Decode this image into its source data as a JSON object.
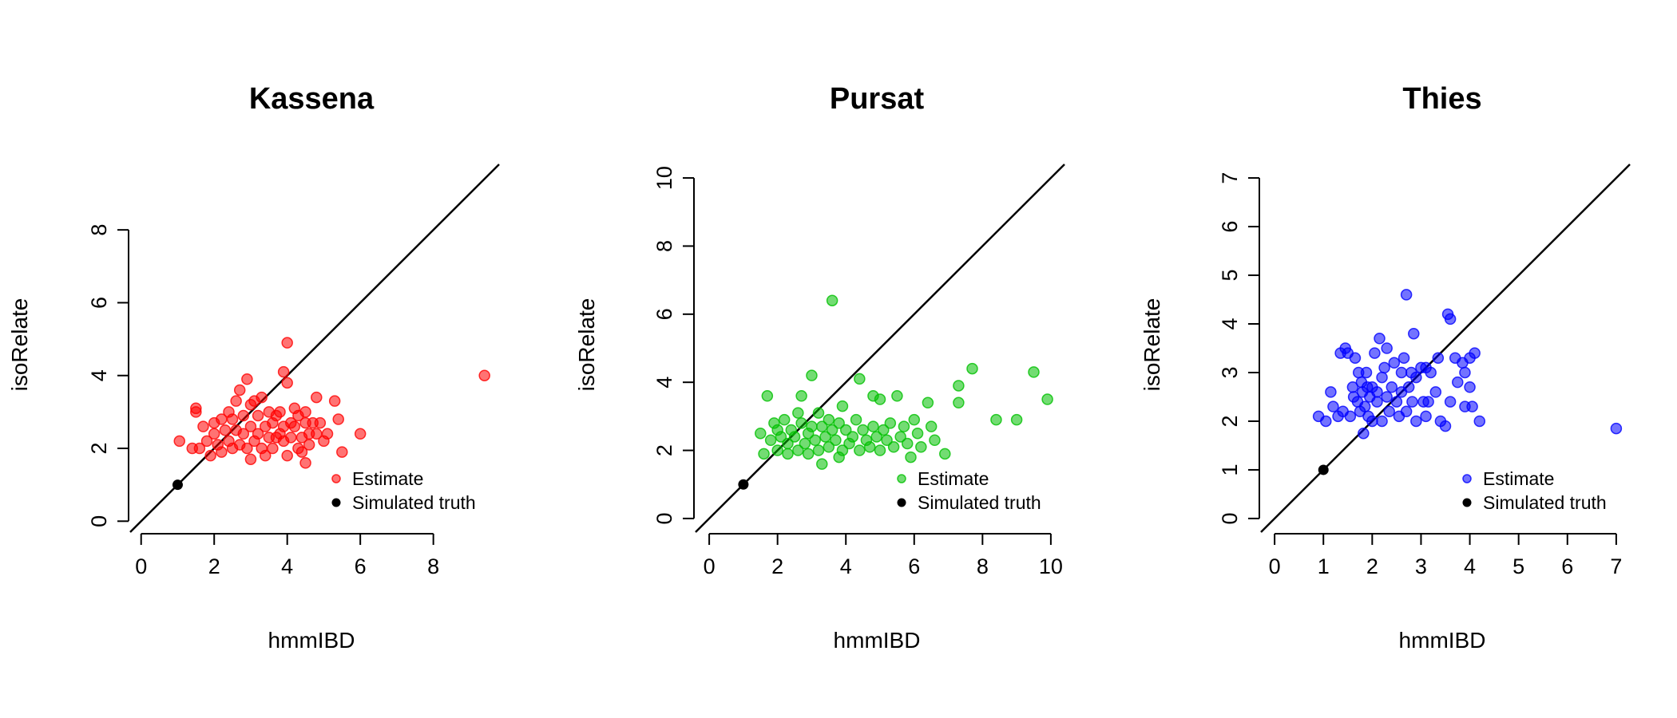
{
  "legend": {
    "estimate_label": "Estimate",
    "truth_label": "Simulated truth"
  },
  "chart_data": [
    {
      "type": "scatter",
      "title": "Kassena",
      "xlabel": "hmmIBD",
      "ylabel": "isoRelate",
      "color": "#ff0000",
      "xlim": [
        -0.3,
        9.8
      ],
      "ylim": [
        -0.3,
        9.8
      ],
      "xticks": [
        0,
        2,
        4,
        6,
        8
      ],
      "yticks": [
        0,
        2,
        4,
        6,
        8
      ],
      "legend_position": "bottom-right",
      "truth": [
        1,
        1
      ],
      "points": [
        [
          1.05,
          2.2
        ],
        [
          1.4,
          2.0
        ],
        [
          1.5,
          3.1
        ],
        [
          1.5,
          3.0
        ],
        [
          1.6,
          2.0
        ],
        [
          1.7,
          2.6
        ],
        [
          1.8,
          2.2
        ],
        [
          1.9,
          1.8
        ],
        [
          2.0,
          2.4
        ],
        [
          2.0,
          2.7
        ],
        [
          2.1,
          2.1
        ],
        [
          2.2,
          2.8
        ],
        [
          2.2,
          1.9
        ],
        [
          2.3,
          2.5
        ],
        [
          2.4,
          3.0
        ],
        [
          2.4,
          2.2
        ],
        [
          2.5,
          2.8
        ],
        [
          2.5,
          2.0
        ],
        [
          2.6,
          3.3
        ],
        [
          2.6,
          2.5
        ],
        [
          2.7,
          2.1
        ],
        [
          2.7,
          3.6
        ],
        [
          2.8,
          2.4
        ],
        [
          2.8,
          2.9
        ],
        [
          2.9,
          2.0
        ],
        [
          2.9,
          3.9
        ],
        [
          3.0,
          1.7
        ],
        [
          3.0,
          3.2
        ],
        [
          3.0,
          2.6
        ],
        [
          3.1,
          2.2
        ],
        [
          3.1,
          3.3
        ],
        [
          3.2,
          2.4
        ],
        [
          3.2,
          2.9
        ],
        [
          3.3,
          2.0
        ],
        [
          3.3,
          3.4
        ],
        [
          3.4,
          2.6
        ],
        [
          3.4,
          1.8
        ],
        [
          3.5,
          2.3
        ],
        [
          3.5,
          3.0
        ],
        [
          3.6,
          2.7
        ],
        [
          3.6,
          2.0
        ],
        [
          3.7,
          2.9
        ],
        [
          3.7,
          2.3
        ],
        [
          3.8,
          2.4
        ],
        [
          3.8,
          3.0
        ],
        [
          3.9,
          2.2
        ],
        [
          3.9,
          2.6
        ],
        [
          3.9,
          4.1
        ],
        [
          4.0,
          3.8
        ],
        [
          4.0,
          4.9
        ],
        [
          4.0,
          1.8
        ],
        [
          4.1,
          2.7
        ],
        [
          4.1,
          2.3
        ],
        [
          4.2,
          2.6
        ],
        [
          4.2,
          3.1
        ],
        [
          4.3,
          2.0
        ],
        [
          4.3,
          2.9
        ],
        [
          4.4,
          2.3
        ],
        [
          4.4,
          1.9
        ],
        [
          4.5,
          2.7
        ],
        [
          4.5,
          3.0
        ],
        [
          4.5,
          1.6
        ],
        [
          4.6,
          2.4
        ],
        [
          4.6,
          2.1
        ],
        [
          4.7,
          2.7
        ],
        [
          4.8,
          2.4
        ],
        [
          4.8,
          3.4
        ],
        [
          4.9,
          2.7
        ],
        [
          5.0,
          2.2
        ],
        [
          5.1,
          2.4
        ],
        [
          5.3,
          3.3
        ],
        [
          5.4,
          2.8
        ],
        [
          5.5,
          1.9
        ],
        [
          6.0,
          2.4
        ],
        [
          9.4,
          4.0
        ]
      ]
    },
    {
      "type": "scatter",
      "title": "Pursat",
      "xlabel": "hmmIBD",
      "ylabel": "isoRelate",
      "color": "#00c000",
      "xlim": [
        -0.4,
        10.4
      ],
      "ylim": [
        -0.4,
        10.4
      ],
      "xticks": [
        0,
        2,
        4,
        6,
        8,
        10
      ],
      "yticks": [
        0,
        2,
        4,
        6,
        8,
        10
      ],
      "legend_position": "bottom-right",
      "truth": [
        1,
        1
      ],
      "points": [
        [
          1.5,
          2.5
        ],
        [
          1.6,
          1.9
        ],
        [
          1.7,
          3.6
        ],
        [
          1.8,
          2.3
        ],
        [
          1.9,
          2.8
        ],
        [
          2.0,
          2.0
        ],
        [
          2.0,
          2.6
        ],
        [
          2.1,
          2.4
        ],
        [
          2.2,
          2.9
        ],
        [
          2.3,
          2.2
        ],
        [
          2.3,
          1.9
        ],
        [
          2.4,
          2.6
        ],
        [
          2.5,
          2.4
        ],
        [
          2.6,
          3.1
        ],
        [
          2.6,
          2.0
        ],
        [
          2.7,
          2.8
        ],
        [
          2.7,
          3.6
        ],
        [
          2.8,
          2.2
        ],
        [
          2.9,
          2.5
        ],
        [
          2.9,
          1.9
        ],
        [
          3.0,
          2.7
        ],
        [
          3.0,
          4.2
        ],
        [
          3.1,
          2.3
        ],
        [
          3.2,
          2.0
        ],
        [
          3.2,
          3.1
        ],
        [
          3.3,
          2.7
        ],
        [
          3.3,
          1.6
        ],
        [
          3.4,
          2.4
        ],
        [
          3.5,
          2.1
        ],
        [
          3.5,
          2.9
        ],
        [
          3.6,
          2.6
        ],
        [
          3.6,
          6.4
        ],
        [
          3.7,
          2.3
        ],
        [
          3.8,
          1.8
        ],
        [
          3.8,
          2.8
        ],
        [
          3.9,
          2.0
        ],
        [
          3.9,
          3.3
        ],
        [
          4.0,
          2.6
        ],
        [
          4.1,
          2.2
        ],
        [
          4.2,
          2.4
        ],
        [
          4.3,
          2.9
        ],
        [
          4.4,
          2.0
        ],
        [
          4.4,
          4.1
        ],
        [
          4.5,
          2.6
        ],
        [
          4.6,
          2.3
        ],
        [
          4.7,
          2.1
        ],
        [
          4.8,
          3.6
        ],
        [
          4.8,
          2.7
        ],
        [
          4.9,
          2.4
        ],
        [
          5.0,
          2.0
        ],
        [
          5.0,
          3.5
        ],
        [
          5.1,
          2.6
        ],
        [
          5.2,
          2.3
        ],
        [
          5.3,
          2.8
        ],
        [
          5.4,
          2.1
        ],
        [
          5.5,
          3.6
        ],
        [
          5.6,
          2.4
        ],
        [
          5.7,
          2.7
        ],
        [
          5.8,
          2.2
        ],
        [
          5.9,
          1.8
        ],
        [
          6.0,
          2.9
        ],
        [
          6.1,
          2.5
        ],
        [
          6.2,
          2.1
        ],
        [
          6.4,
          3.4
        ],
        [
          6.5,
          2.7
        ],
        [
          6.6,
          2.3
        ],
        [
          6.9,
          1.9
        ],
        [
          7.3,
          3.4
        ],
        [
          7.3,
          3.9
        ],
        [
          7.7,
          4.4
        ],
        [
          8.4,
          2.9
        ],
        [
          9.0,
          2.9
        ],
        [
          9.5,
          4.3
        ],
        [
          9.9,
          3.5
        ]
      ]
    },
    {
      "type": "scatter",
      "title": "Thies",
      "xlabel": "hmmIBD",
      "ylabel": "isoRelate",
      "color": "#0000ff",
      "xlim": [
        -0.28,
        7.28
      ],
      "ylim": [
        -0.28,
        7.28
      ],
      "xticks": [
        0,
        1,
        2,
        3,
        4,
        5,
        6,
        7
      ],
      "yticks": [
        0,
        1,
        2,
        3,
        4,
        5,
        6,
        7
      ],
      "legend_position": "bottom-right",
      "truth": [
        1,
        1
      ],
      "points": [
        [
          0.9,
          2.1
        ],
        [
          1.05,
          2.0
        ],
        [
          1.15,
          2.6
        ],
        [
          1.2,
          2.3
        ],
        [
          1.3,
          2.1
        ],
        [
          1.35,
          3.4
        ],
        [
          1.4,
          2.2
        ],
        [
          1.45,
          3.5
        ],
        [
          1.5,
          3.4
        ],
        [
          1.55,
          2.1
        ],
        [
          1.6,
          2.7
        ],
        [
          1.62,
          2.5
        ],
        [
          1.65,
          3.3
        ],
        [
          1.7,
          2.4
        ],
        [
          1.72,
          3.0
        ],
        [
          1.75,
          2.2
        ],
        [
          1.78,
          2.8
        ],
        [
          1.8,
          2.6
        ],
        [
          1.82,
          1.75
        ],
        [
          1.85,
          2.3
        ],
        [
          1.88,
          3.0
        ],
        [
          1.9,
          2.7
        ],
        [
          1.92,
          2.1
        ],
        [
          1.95,
          2.5
        ],
        [
          2.0,
          2.7
        ],
        [
          2.0,
          2.0
        ],
        [
          2.05,
          3.4
        ],
        [
          2.1,
          2.6
        ],
        [
          2.1,
          2.4
        ],
        [
          2.15,
          3.7
        ],
        [
          2.2,
          2.0
        ],
        [
          2.2,
          2.9
        ],
        [
          2.25,
          3.1
        ],
        [
          2.3,
          2.5
        ],
        [
          2.3,
          3.5
        ],
        [
          2.35,
          2.2
        ],
        [
          2.4,
          2.7
        ],
        [
          2.45,
          3.2
        ],
        [
          2.5,
          2.4
        ],
        [
          2.55,
          2.1
        ],
        [
          2.6,
          3.0
        ],
        [
          2.6,
          2.6
        ],
        [
          2.65,
          3.3
        ],
        [
          2.7,
          4.6
        ],
        [
          2.7,
          2.2
        ],
        [
          2.75,
          2.7
        ],
        [
          2.8,
          3.0
        ],
        [
          2.82,
          2.4
        ],
        [
          2.85,
          3.8
        ],
        [
          2.9,
          2.0
        ],
        [
          2.9,
          2.9
        ],
        [
          3.0,
          3.1
        ],
        [
          3.05,
          2.4
        ],
        [
          3.1,
          3.1
        ],
        [
          3.1,
          2.1
        ],
        [
          3.15,
          2.4
        ],
        [
          3.2,
          3.0
        ],
        [
          3.3,
          2.6
        ],
        [
          3.35,
          3.3
        ],
        [
          3.4,
          2.0
        ],
        [
          3.5,
          1.9
        ],
        [
          3.55,
          4.2
        ],
        [
          3.6,
          4.1
        ],
        [
          3.6,
          2.4
        ],
        [
          3.7,
          3.3
        ],
        [
          3.75,
          2.8
        ],
        [
          3.85,
          3.2
        ],
        [
          3.9,
          2.3
        ],
        [
          3.9,
          3.0
        ],
        [
          4.0,
          3.3
        ],
        [
          4.0,
          2.7
        ],
        [
          4.05,
          2.3
        ],
        [
          4.1,
          3.4
        ],
        [
          4.2,
          2.0
        ],
        [
          7.0,
          1.85
        ]
      ]
    }
  ]
}
